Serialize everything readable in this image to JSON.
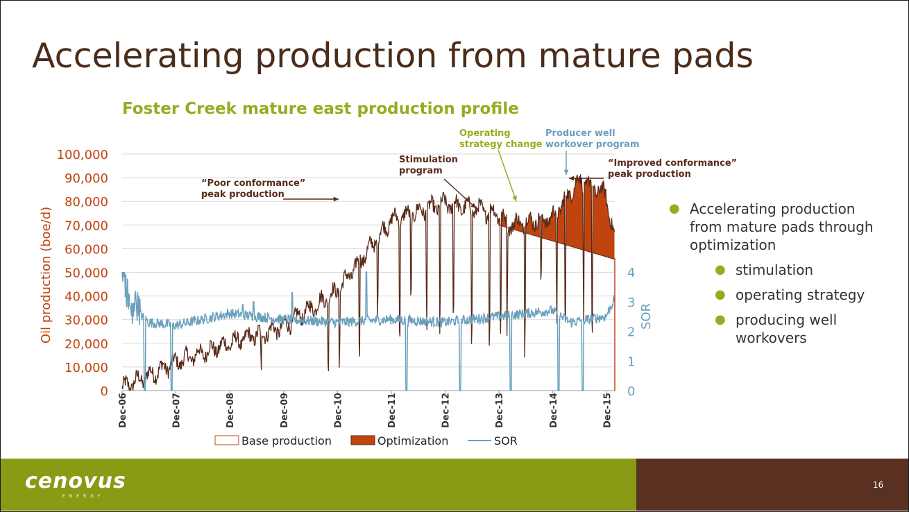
{
  "slide": {
    "title": "Accelerating production from mature pads",
    "page_number": "16",
    "logo": "cenovus",
    "logo_sub": "ENERGY",
    "bullets": {
      "main": "Accelerating production from mature pads through optimization",
      "sub": [
        "stimulation",
        "operating strategy",
        "producing well workovers"
      ]
    }
  },
  "colors": {
    "title": "#4a2c1a",
    "accent_green": "#9aaa1f",
    "production_line": "#5a2a1a",
    "optimization_fill": "#c0440e",
    "axis_orange": "#c0440e",
    "sor_line": "#6aa0bc",
    "footer_green": "#8a9a14",
    "footer_brown": "#5a3020"
  },
  "chart_data": {
    "type": "line",
    "title": "Foster Creek mature east production profile",
    "xlabel": "",
    "ylabel": "Oil production (boe/d)",
    "y2label": "SOR",
    "ylim": [
      0,
      100000
    ],
    "y2lim": [
      0,
      4
    ],
    "y_ticks": [
      "0",
      "10,000",
      "20,000",
      "30,000",
      "40,000",
      "50,000",
      "60,000",
      "70,000",
      "80,000",
      "90,000",
      "100,000"
    ],
    "y2_ticks": [
      "0",
      "1",
      "2",
      "3",
      "4"
    ],
    "x_ticks": [
      "Dec-06",
      "Dec-07",
      "Dec-08",
      "Dec-09",
      "Dec-10",
      "Dec-11",
      "Dec-12",
      "Dec-13",
      "Dec-14",
      "Dec-15"
    ],
    "grid": true,
    "legend": [
      "Base production",
      "Optimization",
      "SOR"
    ],
    "legend_placement": "bottom",
    "series": [
      {
        "name": "Base production",
        "x": [
          0,
          12,
          24,
          36,
          48,
          52,
          60,
          72,
          84,
          96,
          108,
          110
        ],
        "values": [
          1000,
          12000,
          20000,
          27000,
          40000,
          52000,
          70000,
          77000,
          74000,
          70000,
          68000,
          67000
        ]
      },
      {
        "name": "Optimization",
        "x": [
          0,
          12,
          24,
          36,
          48,
          60,
          72,
          84,
          86,
          96,
          102,
          108,
          110
        ],
        "values": [
          1000,
          12000,
          20000,
          27000,
          42000,
          72000,
          79000,
          75000,
          70000,
          73000,
          89000,
          83000,
          63000
        ]
      },
      {
        "name": "Base production decline",
        "x": [
          84,
          110
        ],
        "values": [
          70000,
          55500
        ]
      },
      {
        "name": "SOR",
        "x": [
          0,
          1,
          2,
          3,
          6,
          12,
          24,
          36,
          48,
          60,
          72,
          84,
          96,
          100,
          108,
          110
        ],
        "values": [
          4.0,
          3.2,
          2.3,
          2.7,
          2.3,
          2.2,
          2.6,
          2.4,
          2.3,
          2.4,
          2.3,
          2.5,
          2.7,
          2.3,
          2.5,
          3.1
        ]
      }
    ],
    "annotations": [
      {
        "text": [
          "“Poor conformance”",
          "peak production"
        ],
        "x": 49
      },
      {
        "text": [
          "Stimulation",
          "program"
        ],
        "x": 79
      },
      {
        "text": [
          "Operating",
          "strategy change"
        ],
        "x": 88
      },
      {
        "text": [
          "Producer well",
          "workover program"
        ],
        "x": 99
      },
      {
        "text": [
          "“Improved conformance”",
          "peak production"
        ],
        "x": 100
      }
    ]
  }
}
